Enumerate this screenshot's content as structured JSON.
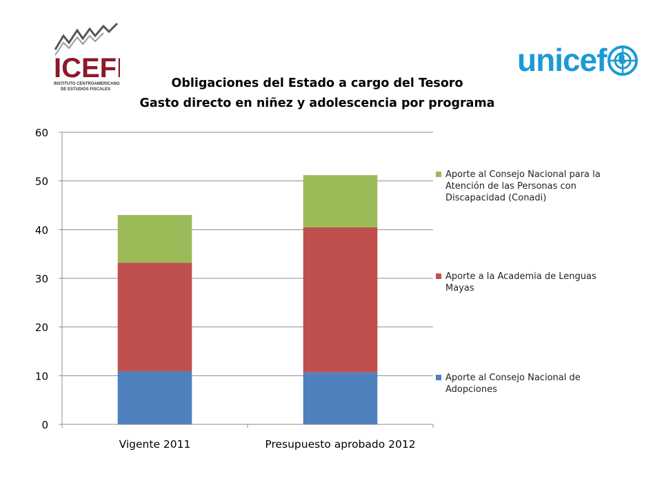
{
  "logos": {
    "left": {
      "name": "ICEFI",
      "subtitle_1": "INSTITUTO CENTROAMERICANO",
      "subtitle_2": "DE ESTUDIOS FISCALES"
    },
    "right": {
      "name": "unicef"
    }
  },
  "colors": {
    "blue": "#4f81bd",
    "red": "#c0504d",
    "green": "#9bbb59",
    "grid": "#8c8c8c",
    "unicef": "#1a9ad6",
    "icefi": "#8b1a2b"
  },
  "chart_data": {
    "type": "bar",
    "stacked": true,
    "title": "Obligaciones del Estado a cargo del Tesoro",
    "subtitle": "Gasto directo en niñez y adolescencia por programa",
    "categories": [
      "Vigente 2011",
      "Presupuesto aprobado 2012"
    ],
    "series": [
      {
        "name": "Aporte al Consejo Nacional de Adopciones",
        "color": "#4f81bd",
        "values": [
          10.9,
          10.7
        ]
      },
      {
        "name": "Aporte a la Academia de Lenguas Mayas",
        "color": "#c0504d",
        "values": [
          22.3,
          29.8
        ]
      },
      {
        "name": "Aporte al Consejo Nacional para la Atención de las Personas con Discapacidad (Conadi)",
        "color": "#9bbb59",
        "values": [
          9.8,
          10.7
        ]
      }
    ],
    "ylim": [
      0,
      60
    ],
    "yticks": [
      0,
      10,
      20,
      30,
      40,
      50,
      60
    ],
    "ytick_labels": [
      "0",
      "10",
      "20",
      "30",
      "40",
      "50",
      "60"
    ],
    "xlabel": "",
    "ylabel": "",
    "grid": true,
    "legend_position": "right"
  }
}
